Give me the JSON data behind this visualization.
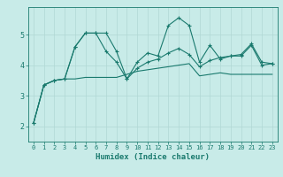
{
  "background_color": "#c8ebe8",
  "grid_color": "#b0d8d4",
  "line_color": "#1a7a6e",
  "xlabel": "Humidex (Indice chaleur)",
  "xlim": [
    -0.5,
    23.5
  ],
  "ylim": [
    1.5,
    5.9
  ],
  "yticks": [
    2,
    3,
    4,
    5
  ],
  "xticks": [
    0,
    1,
    2,
    3,
    4,
    5,
    6,
    7,
    8,
    9,
    10,
    11,
    12,
    13,
    14,
    15,
    16,
    17,
    18,
    19,
    20,
    21,
    22,
    23
  ],
  "series1_x": [
    0,
    1,
    2,
    3,
    4,
    5,
    6,
    7,
    8,
    9,
    10,
    11,
    12,
    13,
    14,
    15,
    16,
    17,
    18,
    19,
    20,
    21,
    22,
    23
  ],
  "series1_y": [
    2.1,
    3.35,
    3.5,
    3.55,
    4.6,
    5.05,
    5.05,
    5.05,
    4.45,
    3.55,
    4.1,
    4.4,
    4.3,
    5.3,
    5.55,
    5.3,
    4.1,
    4.65,
    4.2,
    4.3,
    4.35,
    4.7,
    4.1,
    4.05
  ],
  "series2_x": [
    0,
    1,
    2,
    3,
    4,
    5,
    6,
    7,
    8,
    9,
    10,
    11,
    12,
    13,
    14,
    15,
    16,
    17,
    18,
    19,
    20,
    21,
    22,
    23
  ],
  "series2_y": [
    2.1,
    3.35,
    3.5,
    3.55,
    4.6,
    5.05,
    5.05,
    4.45,
    4.1,
    3.55,
    3.9,
    4.1,
    4.2,
    4.4,
    4.55,
    4.35,
    3.95,
    4.15,
    4.25,
    4.3,
    4.3,
    4.65,
    4.0,
    4.05
  ],
  "series3_x": [
    0,
    1,
    2,
    3,
    4,
    5,
    6,
    7,
    8,
    9,
    10,
    11,
    12,
    13,
    14,
    15,
    16,
    17,
    18,
    19,
    20,
    21,
    22,
    23
  ],
  "series3_y": [
    2.1,
    3.35,
    3.5,
    3.55,
    3.55,
    3.6,
    3.6,
    3.6,
    3.6,
    3.7,
    3.8,
    3.85,
    3.9,
    3.95,
    4.0,
    4.05,
    3.65,
    3.7,
    3.75,
    3.7,
    3.7,
    3.7,
    3.7,
    3.7
  ]
}
